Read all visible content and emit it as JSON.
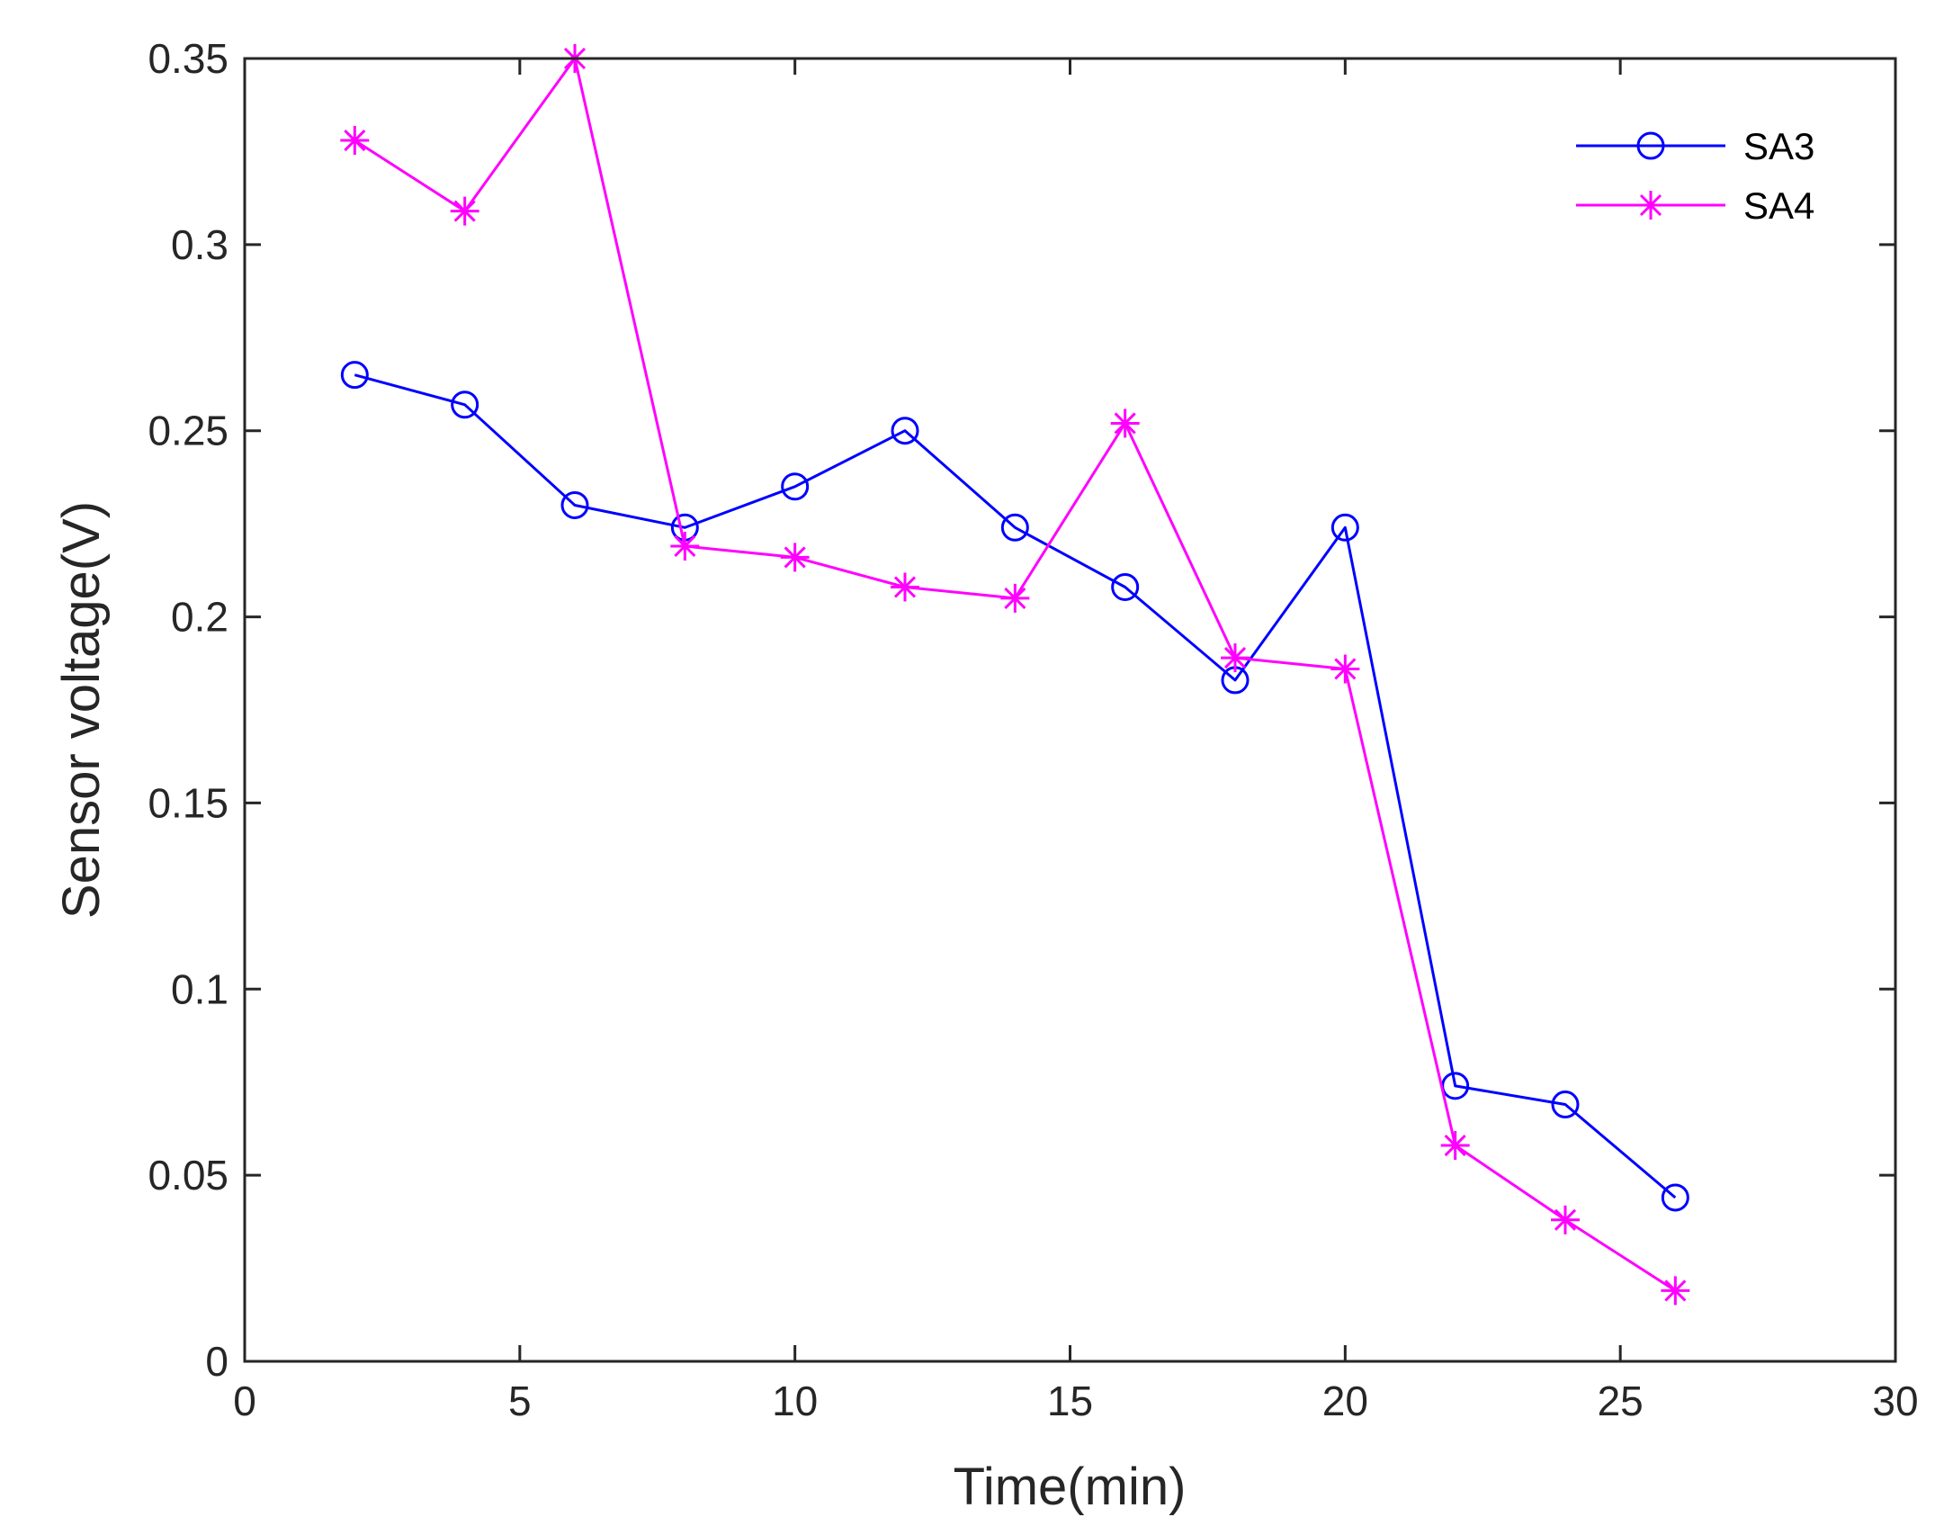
{
  "chart_data": {
    "type": "line",
    "title": "",
    "xlabel": "Time(min)",
    "ylabel": "Sensor voltage(V)",
    "xlim": [
      0,
      30
    ],
    "ylim": [
      0,
      0.35
    ],
    "xticks": [
      0,
      5,
      10,
      15,
      20,
      25,
      30
    ],
    "xtick_labels": [
      "0",
      "5",
      "10",
      "15",
      "20",
      "25",
      "30"
    ],
    "yticks": [
      0,
      0.05,
      0.1,
      0.15,
      0.2,
      0.25,
      0.3,
      0.35
    ],
    "ytick_labels": [
      "0",
      "0.05",
      "0.1",
      "0.15",
      "0.2",
      "0.25",
      "0.3",
      "0.35"
    ],
    "grid": false,
    "legend_position": "top-right",
    "x": [
      2,
      4,
      6,
      8,
      10,
      12,
      14,
      16,
      18,
      20,
      22,
      24,
      26
    ],
    "series": [
      {
        "name": "SA3",
        "marker": "circle",
        "color": "#0000ff",
        "values": [
          0.265,
          0.257,
          0.23,
          0.224,
          0.235,
          0.25,
          0.224,
          0.208,
          0.183,
          0.224,
          0.074,
          0.069,
          0.044
        ]
      },
      {
        "name": "SA4",
        "marker": "asterisk",
        "color": "#ff00ff",
        "values": [
          0.328,
          0.309,
          0.35,
          0.219,
          0.216,
          0.208,
          0.205,
          0.252,
          0.189,
          0.186,
          0.058,
          0.038,
          0.019
        ]
      }
    ]
  }
}
